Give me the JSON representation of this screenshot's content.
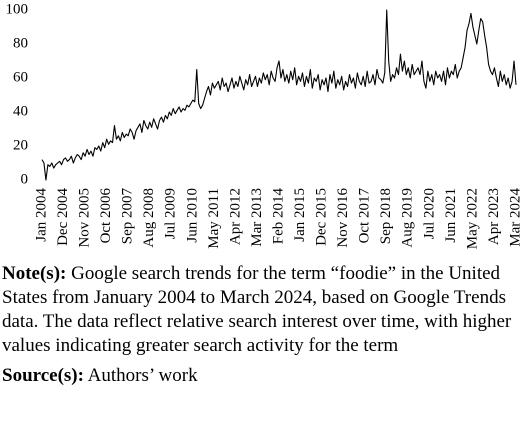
{
  "chart_data": {
    "type": "line",
    "categories": [
      "Jan 2004",
      null,
      null,
      null,
      null,
      null,
      null,
      null,
      null,
      null,
      null,
      "Dec 2004",
      null,
      null,
      null,
      null,
      null,
      null,
      null,
      null,
      null,
      null,
      "Nov 2005",
      null,
      null,
      null,
      null,
      null,
      null,
      null,
      null,
      null,
      null,
      "Oct 2006",
      null,
      null,
      null,
      null,
      null,
      null,
      null,
      null,
      null,
      null,
      "Sep 2007",
      null,
      null,
      null,
      null,
      null,
      null,
      null,
      null,
      null,
      null,
      "Aug 2008",
      null,
      null,
      null,
      null,
      null,
      null,
      null,
      null,
      null,
      null,
      "Jul 2009",
      null,
      null,
      null,
      null,
      null,
      null,
      null,
      null,
      null,
      null,
      "Jun 2010",
      null,
      null,
      null,
      null,
      null,
      null,
      null,
      null,
      null,
      null,
      "May 2011",
      null,
      null,
      null,
      null,
      null,
      null,
      null,
      null,
      null,
      null,
      "Apr 2012",
      null,
      null,
      null,
      null,
      null,
      null,
      null,
      null,
      null,
      null,
      "Mar 2013",
      null,
      null,
      null,
      null,
      null,
      null,
      null,
      null,
      null,
      null,
      "Feb 2014",
      null,
      null,
      null,
      null,
      null,
      null,
      null,
      null,
      null,
      null,
      "Jan 2015",
      null,
      null,
      null,
      null,
      null,
      null,
      null,
      null,
      null,
      null,
      "Dec 2015",
      null,
      null,
      null,
      null,
      null,
      null,
      null,
      null,
      null,
      null,
      "Nov 2016",
      null,
      null,
      null,
      null,
      null,
      null,
      null,
      null,
      null,
      null,
      "Oct 2017",
      null,
      null,
      null,
      null,
      null,
      null,
      null,
      null,
      null,
      null,
      "Sep 2018",
      null,
      null,
      null,
      null,
      null,
      null,
      null,
      null,
      null,
      null,
      "Aug 2019",
      null,
      null,
      null,
      null,
      null,
      null,
      null,
      null,
      null,
      null,
      "Jul 2020",
      null,
      null,
      null,
      null,
      null,
      null,
      null,
      null,
      null,
      null,
      "Jun 2021",
      null,
      null,
      null,
      null,
      null,
      null,
      null,
      null,
      null,
      null,
      "May 2022",
      null,
      null,
      null,
      null,
      null,
      null,
      null,
      null,
      null,
      null,
      "Apr 2023",
      null,
      null,
      null,
      null,
      null,
      null,
      null,
      null,
      null,
      null,
      "Mar 2024"
    ],
    "values": [
      12,
      10,
      0,
      9,
      8,
      10,
      7,
      9,
      10,
      11,
      9,
      12,
      13,
      11,
      12,
      14,
      10,
      13,
      15,
      14,
      12,
      16,
      14,
      18,
      15,
      17,
      14,
      19,
      18,
      20,
      17,
      22,
      19,
      24,
      21,
      23,
      22,
      32,
      24,
      26,
      23,
      28,
      25,
      27,
      26,
      30,
      28,
      24,
      29,
      31,
      33,
      28,
      35,
      32,
      30,
      34,
      31,
      36,
      33,
      30,
      35,
      37,
      34,
      38,
      36,
      40,
      38,
      42,
      39,
      41,
      43,
      40,
      42,
      41,
      44,
      43,
      45,
      47,
      46,
      65,
      45,
      42,
      44,
      48,
      52,
      55,
      50,
      57,
      54,
      56,
      58,
      53,
      60,
      55,
      57,
      52,
      56,
      60,
      54,
      58,
      55,
      61,
      57,
      53,
      59,
      56,
      62,
      55,
      58,
      61,
      55,
      60,
      57,
      63,
      59,
      62,
      56,
      64,
      60,
      58,
      66,
      70,
      60,
      65,
      58,
      62,
      57,
      64,
      59,
      66,
      56,
      61,
      58,
      63,
      55,
      61,
      57,
      65,
      54,
      60,
      58,
      62,
      53,
      59,
      56,
      60,
      52,
      62,
      57,
      64,
      54,
      59,
      56,
      61,
      53,
      58,
      55,
      62,
      57,
      60,
      54,
      63,
      58,
      56,
      61,
      55,
      64,
      57,
      58,
      62,
      56,
      65,
      60,
      59,
      57,
      63,
      100,
      70,
      58,
      62,
      60,
      66,
      62,
      74,
      64,
      70,
      62,
      66,
      60,
      68,
      62,
      64,
      66,
      62,
      70,
      58,
      54,
      64,
      58,
      62,
      56,
      64,
      60,
      62,
      58,
      64,
      56,
      66,
      60,
      64,
      62,
      68,
      60,
      64,
      66,
      72,
      78,
      88,
      92,
      98,
      90,
      85,
      80,
      88,
      95,
      93,
      85,
      78,
      68,
      64,
      62,
      66,
      60,
      55,
      64,
      58,
      62,
      56,
      60,
      54,
      58,
      70,
      56
    ],
    "color": "#000000",
    "ylim": [
      0,
      100
    ],
    "yticks": [
      0,
      20,
      40,
      60,
      80,
      100
    ]
  },
  "note": {
    "label": "Note(s):",
    "text": " Google search trends for the term “foodie” in the United States from January 2004 to March 2024, based on Google Trends data. The data reflect relative search interest over time, with higher values indicating greater search activity for the term"
  },
  "source": {
    "label": "Source(s):",
    "text": " Authors’ work"
  }
}
